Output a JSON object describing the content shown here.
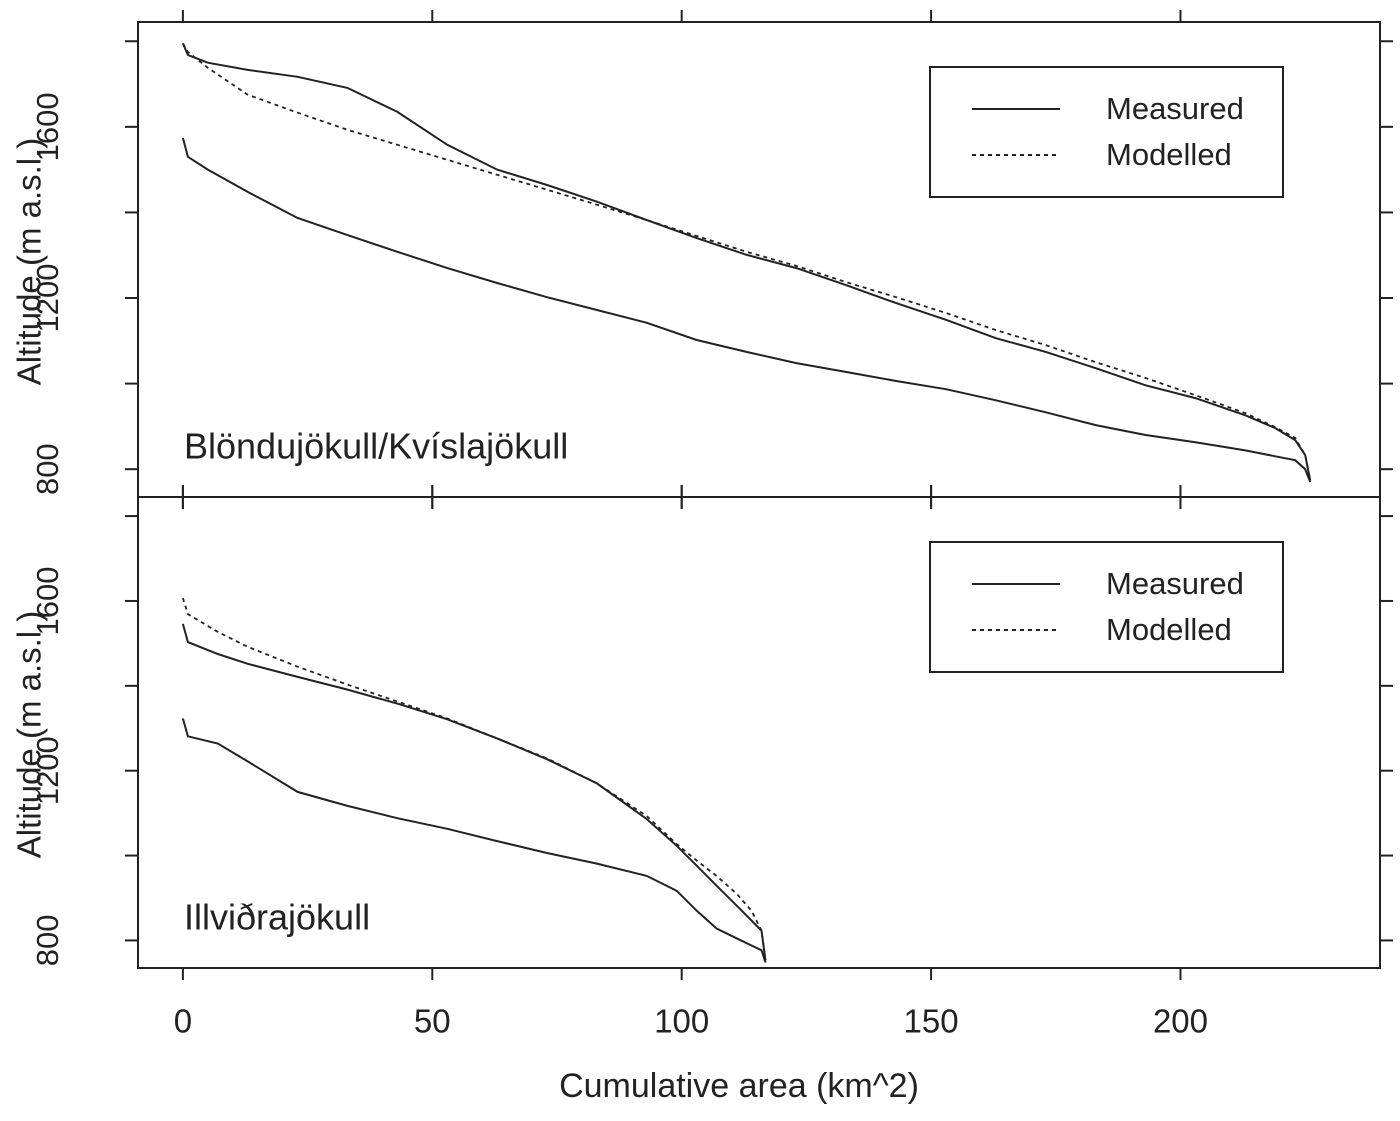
{
  "chart_data": [
    {
      "type": "line",
      "annotation": "Blöndujökull/Kvíslajökull",
      "ylabel": "Altitude (m a.s.l.)",
      "x": [
        0,
        1,
        5,
        13,
        23,
        33,
        43,
        53,
        63,
        73,
        83,
        93,
        103,
        113,
        123,
        133,
        143,
        153,
        163,
        173,
        183,
        193,
        203,
        213,
        219,
        223,
        225,
        226
      ],
      "series": [
        {
          "name": "Measured",
          "color": "#222222",
          "linestyle": "solid",
          "values": [
            1795,
            1768,
            1750,
            1733,
            1717,
            1691,
            1635,
            1558,
            1500,
            1464,
            1425,
            1382,
            1340,
            1301,
            1270,
            1230,
            1188,
            1149,
            1106,
            1074,
            1036,
            996,
            966,
            926,
            896,
            868,
            833,
            774
          ]
        },
        {
          "name": "Modelled",
          "color": "#222222",
          "linestyle": "dotted",
          "values": [
            1795,
            1775,
            1738,
            1675,
            1633,
            1593,
            1558,
            1523,
            1488,
            1453,
            1418,
            1382,
            1345,
            1308,
            1275,
            1237,
            1202,
            1165,
            1125,
            1090,
            1050,
            1013,
            973,
            931,
            898,
            873,
            833,
            774
          ]
        },
        {
          "color": "#222222",
          "linestyle": "solid",
          "values": [
            1574,
            1530,
            1500,
            1448,
            1387,
            1347,
            1308,
            1270,
            1235,
            1202,
            1172,
            1142,
            1102,
            1074,
            1048,
            1027,
            1006,
            987,
            961,
            933,
            903,
            880,
            863,
            844,
            830,
            821,
            800,
            770
          ]
        }
      ],
      "xlim": [
        -9,
        240
      ],
      "ylim": [
        735,
        1845
      ],
      "yticks": [
        800,
        1200,
        1600
      ],
      "minor_yticks": [
        1000,
        1400,
        1800
      ],
      "xticks": [
        0,
        50,
        100,
        150,
        200
      ],
      "legend": "upper right"
    },
    {
      "type": "line",
      "annotation": "Illviðrajökull",
      "ylabel": "Altitude (m a.s.l.)",
      "xlabel": "Cumulative area (km^2)",
      "x": [
        0,
        1,
        7,
        13,
        23,
        33,
        43,
        53,
        63,
        73,
        83,
        93,
        99,
        103,
        107,
        111,
        114,
        116,
        116.8
      ],
      "series": [
        {
          "name": "Measured",
          "color": "#222222",
          "linestyle": "solid",
          "values": [
            1546,
            1503,
            1475,
            1452,
            1421,
            1391,
            1358,
            1321,
            1276,
            1227,
            1170,
            1086,
            1023,
            976,
            929,
            882,
            847,
            823,
            753
          ]
        },
        {
          "name": "Modelled",
          "color": "#222222",
          "linestyle": "dotted",
          "values": [
            1607,
            1569,
            1527,
            1492,
            1445,
            1403,
            1363,
            1323,
            1276,
            1229,
            1170,
            1093,
            1027,
            988,
            952,
            910,
            870,
            823,
            753
          ]
        },
        {
          "color": "#222222",
          "linestyle": "solid",
          "values": [
            1323,
            1281,
            1264,
            1222,
            1150,
            1117,
            1088,
            1063,
            1034,
            1006,
            981,
            952,
            917,
            870,
            828,
            805,
            788,
            777,
            748
          ]
        }
      ],
      "xlim": [
        -9,
        240
      ],
      "ylim": [
        735,
        1845
      ],
      "yticks": [
        800,
        1200,
        1600
      ],
      "minor_yticks": [
        1000,
        1400,
        1800
      ],
      "xticks": [
        0,
        50,
        100,
        150,
        200
      ],
      "legend": "upper right"
    }
  ]
}
